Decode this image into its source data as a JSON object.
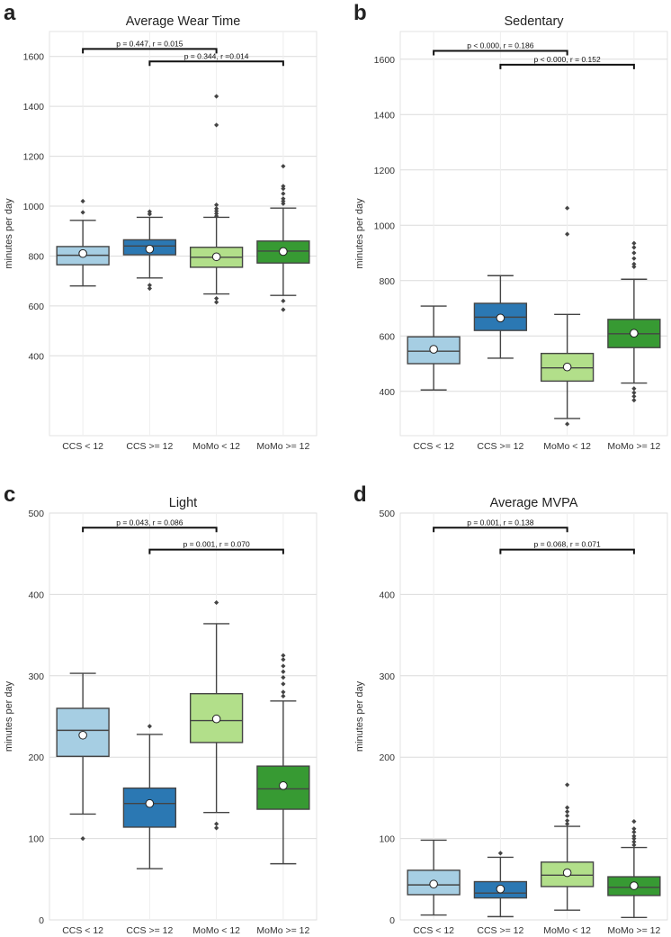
{
  "colors": {
    "ccs_lt12": "#a6cee3",
    "ccs_ge12": "#2b78b3",
    "momo_lt12": "#b2df8a",
    "momo_ge12": "#379a33",
    "grid": "#dcdcdc",
    "line": "#444444"
  },
  "chart_data": [
    {
      "type": "box",
      "letter": "a",
      "title": "Average Wear Time",
      "ylabel": "minutes per day",
      "xlabel": "",
      "ylim": [
        80,
        1700
      ],
      "yticks": [
        400,
        600,
        800,
        1000,
        1200,
        1400,
        1600
      ],
      "grid": true,
      "categories": [
        "CCS < 12",
        "CCS >= 12",
        "MoMo < 12",
        "MoMo >= 12"
      ],
      "series": [
        {
          "name": "CCS < 12",
          "color_key": "ccs_lt12",
          "whislo": 680,
          "q1": 765,
          "median": 803,
          "q3": 838,
          "whishi": 943,
          "mean": 810,
          "fliers": [
            975,
            1020
          ]
        },
        {
          "name": "CCS >= 12",
          "color_key": "ccs_ge12",
          "whislo": 712,
          "q1": 805,
          "median": 840,
          "q3": 865,
          "whishi": 955,
          "mean": 828,
          "fliers": [
            670,
            683,
            968,
            978
          ]
        },
        {
          "name": "MoMo < 12",
          "color_key": "momo_lt12",
          "whislo": 648,
          "q1": 755,
          "median": 795,
          "q3": 835,
          "whishi": 955,
          "mean": 797,
          "fliers": [
            615,
            630,
            960,
            970,
            980,
            990,
            1005,
            1325,
            1440
          ]
        },
        {
          "name": "MoMo >= 12",
          "color_key": "momo_ge12",
          "whislo": 642,
          "q1": 772,
          "median": 820,
          "q3": 860,
          "whishi": 992,
          "mean": 818,
          "fliers": [
            585,
            620,
            1010,
            1020,
            1030,
            1050,
            1070,
            1080,
            1160
          ]
        }
      ],
      "annotations": [
        {
          "text": "p = 0.447, r = 0.015",
          "from": 0,
          "to": 2,
          "y": 1630
        },
        {
          "text": "p = 0.344, r =0.014",
          "from": 1,
          "to": 3,
          "y": 1580
        }
      ]
    },
    {
      "type": "box",
      "letter": "b",
      "title": "Sedentary",
      "ylabel": "minutes per day",
      "xlabel": "",
      "ylim": [
        240,
        1700
      ],
      "yticks": [
        400,
        600,
        800,
        1000,
        1200,
        1400,
        1600
      ],
      "grid": true,
      "categories": [
        "CCS < 12",
        "CCS >= 12",
        "MoMo < 12",
        "MoMo >= 12"
      ],
      "series": [
        {
          "name": "CCS < 12",
          "color_key": "ccs_lt12",
          "whislo": 405,
          "q1": 500,
          "median": 545,
          "q3": 597,
          "whishi": 708,
          "mean": 552,
          "fliers": []
        },
        {
          "name": "CCS >= 12",
          "color_key": "ccs_ge12",
          "whislo": 520,
          "q1": 620,
          "median": 668,
          "q3": 718,
          "whishi": 818,
          "mean": 665,
          "fliers": []
        },
        {
          "name": "MoMo < 12",
          "color_key": "momo_lt12",
          "whislo": 302,
          "q1": 437,
          "median": 485,
          "q3": 537,
          "whishi": 678,
          "mean": 488,
          "fliers": [
            282,
            968,
            1062
          ]
        },
        {
          "name": "MoMo >= 12",
          "color_key": "momo_ge12",
          "whislo": 430,
          "q1": 558,
          "median": 608,
          "q3": 660,
          "whishi": 805,
          "mean": 610,
          "fliers": [
            368,
            382,
            395,
            410,
            850,
            860,
            880,
            900,
            920,
            935
          ]
        }
      ],
      "annotations": [
        {
          "text": "p < 0.000, r = 0.186",
          "from": 0,
          "to": 2,
          "y": 1630
        },
        {
          "text": "p < 0.000, r = 0.152",
          "from": 1,
          "to": 3,
          "y": 1580
        }
      ]
    },
    {
      "type": "box",
      "letter": "c",
      "title": "Light",
      "ylabel": "minutes per day",
      "xlabel": "",
      "ylim": [
        0,
        500
      ],
      "yticks": [
        0,
        100,
        200,
        300,
        400,
        500
      ],
      "grid": true,
      "categories": [
        "CCS < 12",
        "CCS >= 12",
        "MoMo < 12",
        "MoMo >= 12"
      ],
      "series": [
        {
          "name": "CCS < 12",
          "color_key": "ccs_lt12",
          "whislo": 130,
          "q1": 201,
          "median": 233,
          "q3": 260,
          "whishi": 303,
          "mean": 227,
          "fliers": [
            100
          ]
        },
        {
          "name": "CCS >= 12",
          "color_key": "ccs_ge12",
          "whislo": 63,
          "q1": 114,
          "median": 143,
          "q3": 162,
          "whishi": 228,
          "mean": 143,
          "fliers": [
            238
          ]
        },
        {
          "name": "MoMo < 12",
          "color_key": "momo_lt12",
          "whislo": 132,
          "q1": 218,
          "median": 245,
          "q3": 278,
          "whishi": 364,
          "mean": 247,
          "fliers": [
            113,
            118,
            390
          ]
        },
        {
          "name": "MoMo >= 12",
          "color_key": "momo_ge12",
          "whislo": 69,
          "q1": 136,
          "median": 161,
          "q3": 189,
          "whishi": 269,
          "mean": 165,
          "fliers": [
            275,
            280,
            290,
            298,
            305,
            312,
            320,
            325
          ]
        }
      ],
      "annotations": [
        {
          "text": "p = 0.043, r = 0.086",
          "from": 0,
          "to": 2,
          "y": 482
        },
        {
          "text": "p = 0.001, r = 0.070",
          "from": 1,
          "to": 3,
          "y": 455
        }
      ]
    },
    {
      "type": "box",
      "letter": "d",
      "title": "Average MVPA",
      "ylabel": "minutes per day",
      "xlabel": "",
      "ylim": [
        0,
        500
      ],
      "yticks": [
        0,
        100,
        200,
        300,
        400,
        500
      ],
      "grid": true,
      "categories": [
        "CCS < 12",
        "CCS >= 12",
        "MoMo < 12",
        "MoMo >= 12"
      ],
      "series": [
        {
          "name": "CCS < 12",
          "color_key": "ccs_lt12",
          "whislo": 6,
          "q1": 31,
          "median": 43,
          "q3": 61,
          "whishi": 98,
          "mean": 44,
          "fliers": []
        },
        {
          "name": "CCS >= 12",
          "color_key": "ccs_ge12",
          "whislo": 4,
          "q1": 27,
          "median": 33,
          "q3": 47,
          "whishi": 77,
          "mean": 38,
          "fliers": [
            82
          ]
        },
        {
          "name": "MoMo < 12",
          "color_key": "momo_lt12",
          "whislo": 12,
          "q1": 41,
          "median": 55,
          "q3": 71,
          "whishi": 115,
          "mean": 58,
          "fliers": [
            118,
            122,
            128,
            133,
            138,
            166
          ]
        },
        {
          "name": "MoMo >= 12",
          "color_key": "momo_ge12",
          "whislo": 3,
          "q1": 30,
          "median": 40,
          "q3": 53,
          "whishi": 89,
          "mean": 42,
          "fliers": [
            92,
            96,
            100,
            103,
            108,
            112,
            121
          ]
        }
      ],
      "annotations": [
        {
          "text": "p = 0.001, r = 0.138",
          "from": 0,
          "to": 2,
          "y": 482
        },
        {
          "text": "p = 0.068, r = 0.071",
          "from": 1,
          "to": 3,
          "y": 455
        }
      ]
    }
  ]
}
